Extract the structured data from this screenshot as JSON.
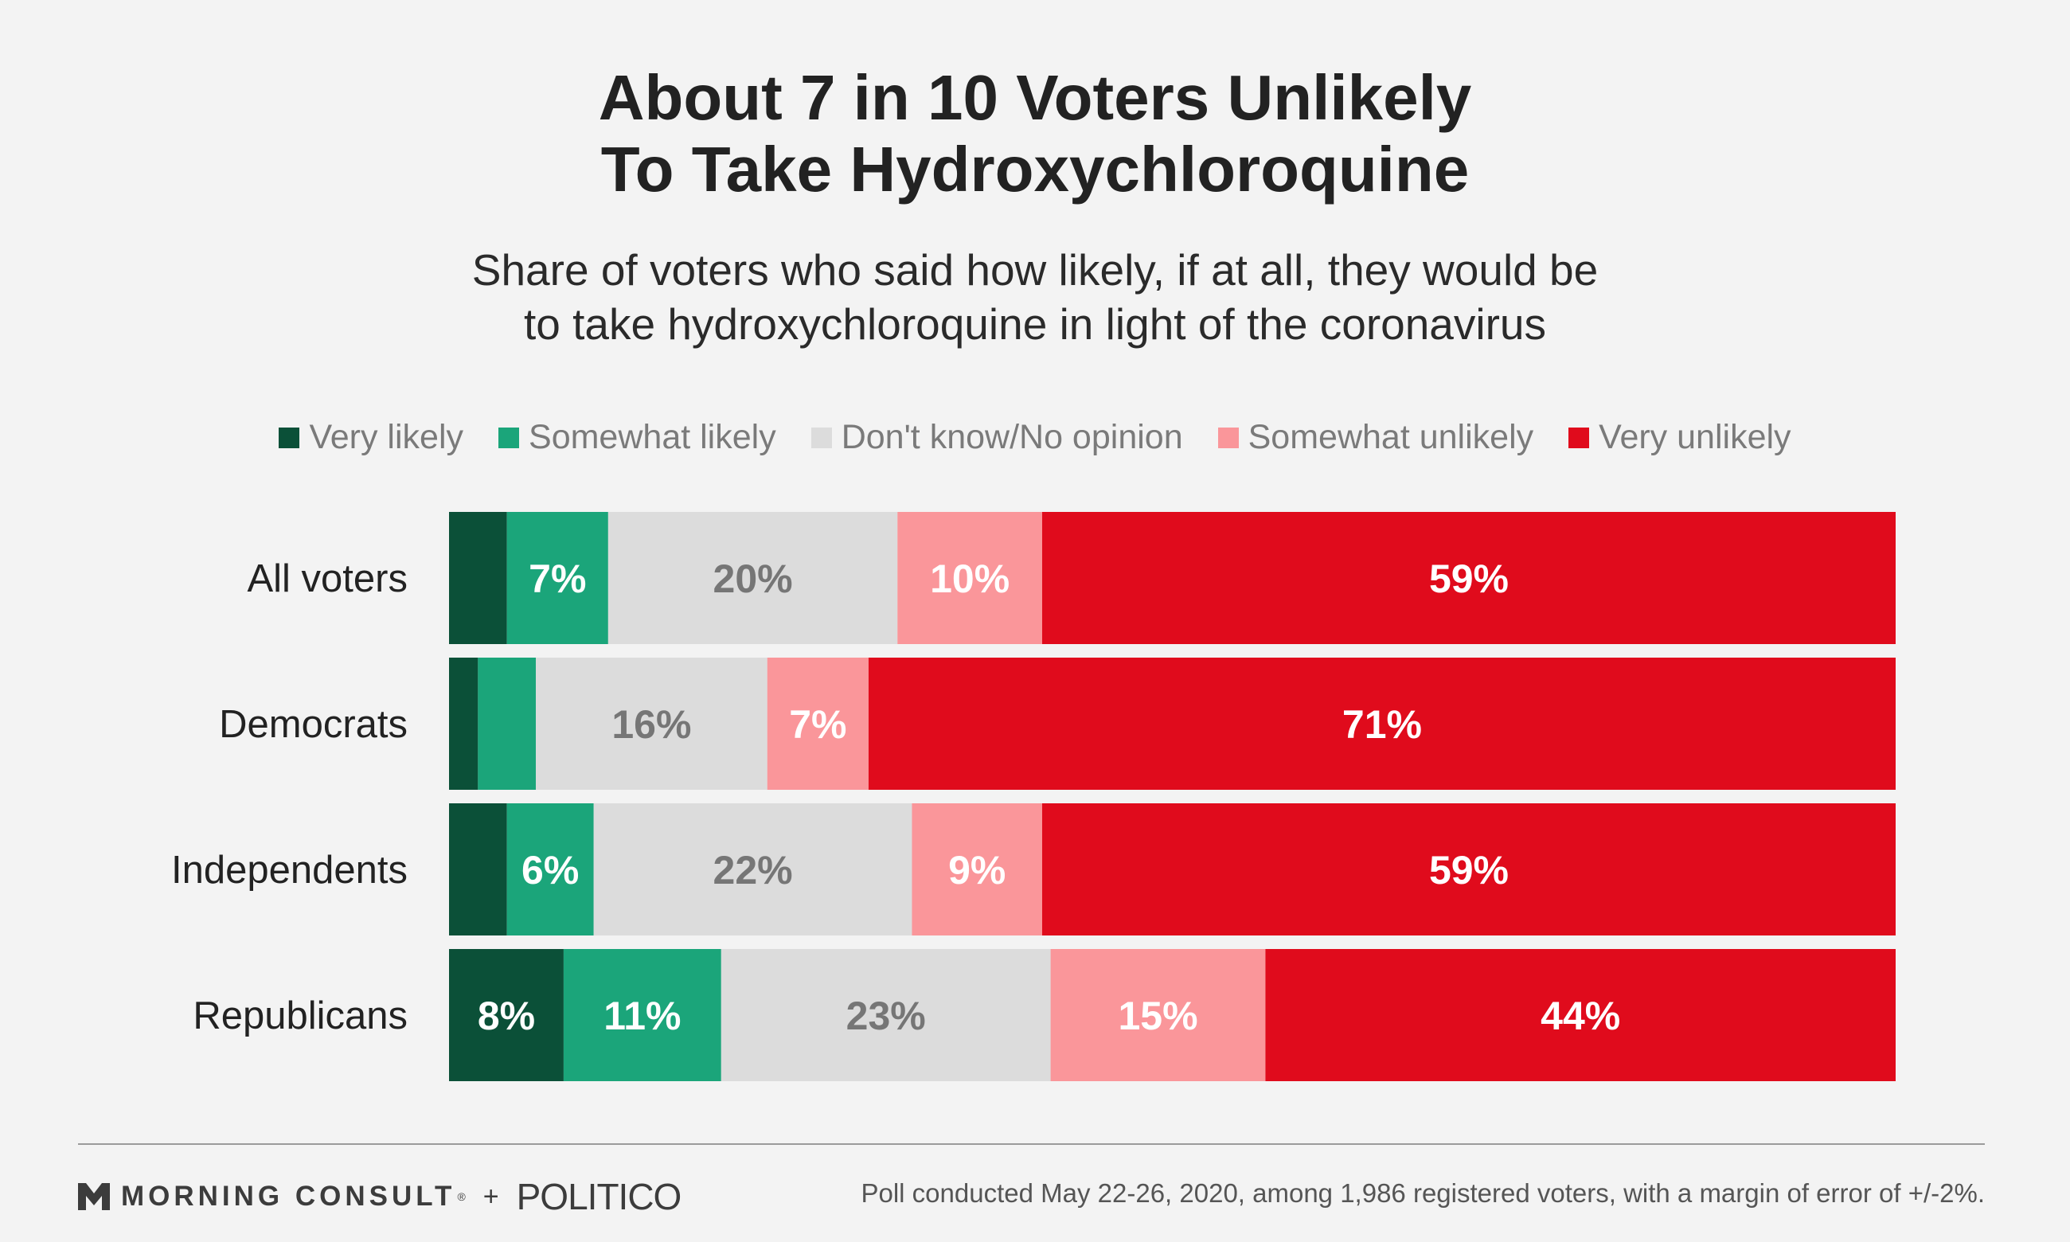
{
  "header": {
    "title_line1": "About 7 in 10 Voters Unlikely",
    "title_line2": "To Take Hydroxychloroquine",
    "subtitle_line1": "Share of voters who said how likely, if at all, they would be",
    "subtitle_line2": "to take hydroxychloroquine in light of the coronavirus"
  },
  "chart_data": {
    "type": "bar",
    "orientation": "horizontal",
    "stacked": true,
    "categories": [
      "All voters",
      "Democrats",
      "Independents",
      "Republicans"
    ],
    "series": [
      {
        "name": "Very likely",
        "color": "#0b5038",
        "values": [
          4,
          2,
          4,
          8
        ],
        "labels": [
          "",
          "",
          "",
          "8%"
        ]
      },
      {
        "name": "Somewhat likely",
        "color": "#1ba57a",
        "values": [
          7,
          4,
          6,
          11
        ],
        "labels": [
          "7%",
          "",
          "6%",
          "11%"
        ]
      },
      {
        "name": "Don't know/No opinion",
        "color": "#dcdcdc",
        "values": [
          20,
          16,
          22,
          23
        ],
        "labels": [
          "20%",
          "16%",
          "22%",
          "23%"
        ]
      },
      {
        "name": "Somewhat unlikely",
        "color": "#fa969a",
        "values": [
          10,
          7,
          9,
          15
        ],
        "labels": [
          "10%",
          "7%",
          "9%",
          "15%"
        ]
      },
      {
        "name": "Very unlikely",
        "color": "#e00b1c",
        "values": [
          59,
          71,
          59,
          44
        ],
        "labels": [
          "59%",
          "71%",
          "59%",
          "44%"
        ]
      }
    ],
    "xlim": [
      0,
      100
    ],
    "legend": "top",
    "grid": false
  },
  "footer": {
    "brand1": "MORNING CONSULT",
    "brand_mark": "®",
    "plus": "+",
    "brand2": "POLITICO",
    "note": "Poll conducted May 22-26, 2020, among 1,986 registered voters, with a margin of error of +/-2%."
  },
  "icons": {
    "brand_logo": "morning-consult-logo-icon"
  }
}
